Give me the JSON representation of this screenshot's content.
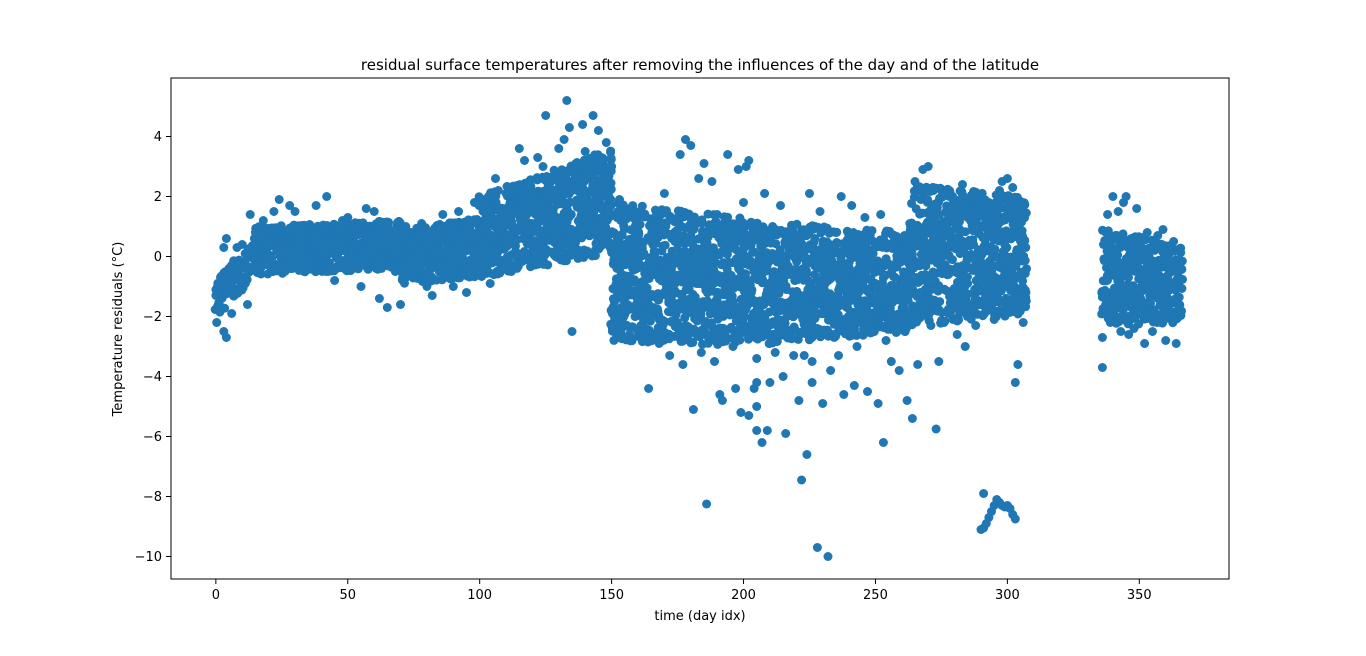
{
  "chart_data": {
    "type": "scatter",
    "title": "residual surface temperatures after removing the influences of the day and of the latitude",
    "xlabel": "time (day idx)",
    "ylabel": "Temperature residuals (°C)",
    "xlim": [
      -17,
      384
    ],
    "ylim": [
      -10.75,
      5.95
    ],
    "xticks": [
      0,
      50,
      100,
      150,
      200,
      250,
      300,
      350
    ],
    "yticks": [
      4,
      2,
      0,
      -2,
      -4,
      -6,
      -8,
      -10
    ],
    "ytick_labels": [
      "4",
      "2",
      "0",
      "−2",
      "−4",
      "−6",
      "−8",
      "−10"
    ],
    "marker_color": "#1f77b4",
    "grid": false,
    "legend": "none",
    "series": [
      {
        "points": [
          [
            0,
            -1.3
          ],
          [
            1,
            -1.6
          ],
          [
            2,
            -0.9
          ],
          [
            3,
            -2.5
          ],
          [
            4,
            -2.7
          ],
          [
            4,
            0.6
          ],
          [
            3,
            0.3
          ],
          [
            5,
            -0.4
          ],
          [
            6,
            -1.9
          ],
          [
            8,
            0.3
          ],
          [
            10,
            0.4
          ],
          [
            12,
            -1.6
          ],
          [
            13,
            1.4
          ],
          [
            15,
            0.8
          ],
          [
            18,
            1.2
          ],
          [
            20,
            0.4
          ],
          [
            22,
            1.5
          ],
          [
            24,
            1.9
          ],
          [
            25,
            0.1
          ],
          [
            28,
            1.7
          ],
          [
            30,
            1.5
          ],
          [
            32,
            0.6
          ],
          [
            35,
            -0.2
          ],
          [
            38,
            1.7
          ],
          [
            40,
            0.3
          ],
          [
            42,
            2.0
          ],
          [
            45,
            -0.8
          ],
          [
            48,
            1.2
          ],
          [
            50,
            1.3
          ],
          [
            53,
            0.4
          ],
          [
            55,
            -1.0
          ],
          [
            57,
            1.6
          ],
          [
            60,
            1.5
          ],
          [
            62,
            -1.4
          ],
          [
            64,
            0.9
          ],
          [
            65,
            -1.7
          ],
          [
            68,
            -0.5
          ],
          [
            70,
            -1.6
          ],
          [
            72,
            1.0
          ],
          [
            75,
            -0.4
          ],
          [
            78,
            1.1
          ],
          [
            80,
            -1.0
          ],
          [
            82,
            -1.3
          ],
          [
            84,
            0.2
          ],
          [
            86,
            1.4
          ],
          [
            88,
            -0.7
          ],
          [
            90,
            -1.0
          ],
          [
            92,
            1.5
          ],
          [
            95,
            -1.2
          ],
          [
            98,
            1.8
          ],
          [
            100,
            0.9
          ],
          [
            102,
            1.9
          ],
          [
            104,
            -0.9
          ],
          [
            106,
            2.6
          ],
          [
            108,
            1.4
          ],
          [
            110,
            2.1
          ],
          [
            112,
            -0.5
          ],
          [
            115,
            3.6
          ],
          [
            117,
            3.2
          ],
          [
            119,
            0.8
          ],
          [
            122,
            3.3
          ],
          [
            124,
            3.0
          ],
          [
            125,
            4.7
          ],
          [
            127,
            2.5
          ],
          [
            128,
            1.4
          ],
          [
            130,
            3.6
          ],
          [
            132,
            3.9
          ],
          [
            133,
            5.2
          ],
          [
            134,
            4.3
          ],
          [
            135,
            -2.5
          ],
          [
            137,
            0.2
          ],
          [
            139,
            4.4
          ],
          [
            140,
            3.5
          ],
          [
            142,
            1.5
          ],
          [
            143,
            4.7
          ],
          [
            145,
            4.2
          ],
          [
            147,
            1.1
          ],
          [
            148,
            3.8
          ],
          [
            149,
            1.6
          ],
          [
            150,
            3.0
          ],
          [
            151,
            -1.5
          ],
          [
            152,
            -0.4
          ],
          [
            153,
            1.9
          ],
          [
            155,
            -2.7
          ],
          [
            157,
            -0.7
          ],
          [
            159,
            1.5
          ],
          [
            160,
            -2.5
          ],
          [
            162,
            0.1
          ],
          [
            164,
            -4.4
          ],
          [
            165,
            -1.7
          ],
          [
            167,
            1.4
          ],
          [
            168,
            -2.9
          ],
          [
            170,
            2.1
          ],
          [
            172,
            -3.3
          ],
          [
            174,
            0.5
          ],
          [
            176,
            3.4
          ],
          [
            177,
            -3.6
          ],
          [
            178,
            3.9
          ],
          [
            179,
            -0.7
          ],
          [
            180,
            3.7
          ],
          [
            181,
            -5.1
          ],
          [
            182,
            -1.7
          ],
          [
            183,
            2.6
          ],
          [
            184,
            -3.2
          ],
          [
            185,
            3.1
          ],
          [
            186,
            -8.25
          ],
          [
            187,
            0.9
          ],
          [
            188,
            2.5
          ],
          [
            189,
            -3.5
          ],
          [
            190,
            1.4
          ],
          [
            191,
            -4.6
          ],
          [
            192,
            -4.8
          ],
          [
            193,
            -2.6
          ],
          [
            194,
            3.4
          ],
          [
            195,
            0.3
          ],
          [
            196,
            -3.0
          ],
          [
            197,
            -4.4
          ],
          [
            198,
            2.9
          ],
          [
            199,
            -5.2
          ],
          [
            200,
            1.8
          ],
          [
            201,
            3.0
          ],
          [
            202,
            -5.3
          ],
          [
            202,
            3.2
          ],
          [
            203,
            -1.2
          ],
          [
            204,
            -4.4
          ],
          [
            205,
            -5.8
          ],
          [
            205,
            -5.0
          ],
          [
            205,
            -4.2
          ],
          [
            205,
            -3.4
          ],
          [
            205,
            -2.6
          ],
          [
            205,
            -1.8
          ],
          [
            206,
            -0.4
          ],
          [
            207,
            -6.2
          ],
          [
            208,
            2.1
          ],
          [
            209,
            -5.8
          ],
          [
            210,
            -4.2
          ],
          [
            211,
            1.0
          ],
          [
            212,
            -3.2
          ],
          [
            213,
            -2.1
          ],
          [
            214,
            1.7
          ],
          [
            215,
            -4.0
          ],
          [
            216,
            -5.9
          ],
          [
            217,
            -0.6
          ],
          [
            218,
            0.9
          ],
          [
            219,
            -3.3
          ],
          [
            220,
            -2.5
          ],
          [
            221,
            -4.8
          ],
          [
            222,
            -7.45
          ],
          [
            223,
            -3.3
          ],
          [
            224,
            -6.6
          ],
          [
            225,
            2.1
          ],
          [
            226,
            -2.7
          ],
          [
            226,
            -3.5
          ],
          [
            226,
            -4.2
          ],
          [
            227,
            0.6
          ],
          [
            228,
            -9.7
          ],
          [
            228,
            -2.4
          ],
          [
            229,
            1.5
          ],
          [
            230,
            -4.9
          ],
          [
            231,
            -0.9
          ],
          [
            232,
            -10.0
          ],
          [
            233,
            -3.8
          ],
          [
            234,
            -1.5
          ],
          [
            235,
            0.8
          ],
          [
            236,
            -3.3
          ],
          [
            237,
            2.0
          ],
          [
            238,
            -4.6
          ],
          [
            239,
            -1.2
          ],
          [
            240,
            -0.2
          ],
          [
            241,
            1.7
          ],
          [
            242,
            -4.3
          ],
          [
            243,
            -3.0
          ],
          [
            244,
            0.2
          ],
          [
            245,
            -1.8
          ],
          [
            246,
            1.3
          ],
          [
            247,
            -4.5
          ],
          [
            248,
            0.7
          ],
          [
            249,
            -2.4
          ],
          [
            250,
            -0.9
          ],
          [
            251,
            -4.9
          ],
          [
            252,
            1.4
          ],
          [
            253,
            -6.2
          ],
          [
            254,
            -2.8
          ],
          [
            255,
            -1.2
          ],
          [
            256,
            -3.5
          ],
          [
            257,
            0.5
          ],
          [
            258,
            -2.1
          ],
          [
            259,
            -3.8
          ],
          [
            260,
            -1.5
          ],
          [
            261,
            0.7
          ],
          [
            262,
            -4.8
          ],
          [
            263,
            1.1
          ],
          [
            264,
            -5.4
          ],
          [
            265,
            2.5
          ],
          [
            266,
            -3.6
          ],
          [
            267,
            -1.2
          ],
          [
            268,
            2.9
          ],
          [
            269,
            -0.7
          ],
          [
            270,
            3.0
          ],
          [
            271,
            -2.3
          ],
          [
            272,
            2.2
          ],
          [
            273,
            -5.75
          ],
          [
            274,
            -3.5
          ],
          [
            275,
            1.0
          ],
          [
            276,
            -2.2
          ],
          [
            277,
            0.3
          ],
          [
            278,
            2.1
          ],
          [
            279,
            -1.5
          ],
          [
            280,
            1.5
          ],
          [
            281,
            -2.6
          ],
          [
            282,
            0.9
          ],
          [
            283,
            2.4
          ],
          [
            284,
            -3.0
          ],
          [
            285,
            0.4
          ],
          [
            286,
            -1.8
          ],
          [
            287,
            1.1
          ],
          [
            288,
            -2.3
          ],
          [
            289,
            -0.4
          ],
          [
            290,
            -9.1
          ],
          [
            291,
            -9.05
          ],
          [
            292,
            -8.9
          ],
          [
            293,
            -8.7
          ],
          [
            294,
            -8.5
          ],
          [
            295,
            -8.3
          ],
          [
            296,
            -8.1
          ],
          [
            297,
            -8.2
          ],
          [
            298,
            -8.3
          ],
          [
            299,
            -8.35
          ],
          [
            300,
            -8.3
          ],
          [
            301,
            -8.4
          ],
          [
            302,
            -8.6
          ],
          [
            303,
            -8.75
          ],
          [
            291,
            -7.9
          ],
          [
            293,
            1.8
          ],
          [
            295,
            -2.1
          ],
          [
            297,
            2.2
          ],
          [
            298,
            2.5
          ],
          [
            299,
            0.4
          ],
          [
            300,
            2.6
          ],
          [
            301,
            -0.8
          ],
          [
            302,
            2.3
          ],
          [
            303,
            -4.2
          ],
          [
            304,
            -3.6
          ],
          [
            305,
            0.5
          ],
          [
            306,
            -2.2
          ],
          [
            307,
            0.3
          ],
          [
            336,
            -2.7
          ],
          [
            336,
            -3.7
          ],
          [
            337,
            0.5
          ],
          [
            338,
            1.4
          ],
          [
            339,
            -2.2
          ],
          [
            340,
            2.0
          ],
          [
            341,
            -0.5
          ],
          [
            342,
            1.5
          ],
          [
            343,
            -2.5
          ],
          [
            344,
            1.8
          ],
          [
            345,
            2.0
          ],
          [
            346,
            -2.6
          ],
          [
            347,
            0.2
          ],
          [
            348,
            -2.4
          ],
          [
            349,
            1.6
          ],
          [
            350,
            -1.5
          ],
          [
            351,
            0.3
          ],
          [
            352,
            -2.9
          ],
          [
            353,
            0.8
          ],
          [
            354,
            -1.2
          ],
          [
            355,
            -2.5
          ],
          [
            356,
            -0.3
          ],
          [
            357,
            0.7
          ],
          [
            358,
            -2.2
          ],
          [
            359,
            0.9
          ],
          [
            360,
            -2.8
          ],
          [
            361,
            -0.6
          ],
          [
            362,
            -2.0
          ],
          [
            363,
            0.5
          ],
          [
            364,
            -2.9
          ],
          [
            365,
            -1.6
          ]
        ],
        "bands": [
          {
            "x0": 0,
            "x1": 15,
            "lo": [
              -2.2,
              -0.5
            ],
            "hi": [
              -0.7,
              0.5
            ],
            "density": 3
          },
          {
            "x0": 15,
            "x1": 70,
            "lo": [
              -0.6,
              -0.4
            ],
            "hi": [
              1.0,
              1.2
            ],
            "density": 6
          },
          {
            "x0": 70,
            "x1": 100,
            "lo": [
              -0.9,
              -0.7
            ],
            "hi": [
              0.9,
              1.3
            ],
            "density": 6
          },
          {
            "x0": 100,
            "x1": 150,
            "lo": [
              -0.7,
              0.1
            ],
            "hi": [
              2.0,
              3.6
            ],
            "density": 7
          },
          {
            "x0": 150,
            "x1": 200,
            "lo": [
              -2.8,
              -3.0
            ],
            "hi": [
              1.8,
              1.3
            ],
            "density": 8
          },
          {
            "x0": 200,
            "x1": 263,
            "lo": [
              -3.0,
              -2.5
            ],
            "hi": [
              1.2,
              0.8
            ],
            "density": 7
          },
          {
            "x0": 263,
            "x1": 307,
            "lo": [
              -2.3,
              -2.0
            ],
            "hi": [
              2.4,
              2.0
            ],
            "density": 8
          },
          {
            "x0": 336,
            "x1": 366,
            "lo": [
              -2.3,
              -2.2
            ],
            "hi": [
              0.9,
              0.4
            ],
            "density": 6
          }
        ]
      }
    ]
  }
}
